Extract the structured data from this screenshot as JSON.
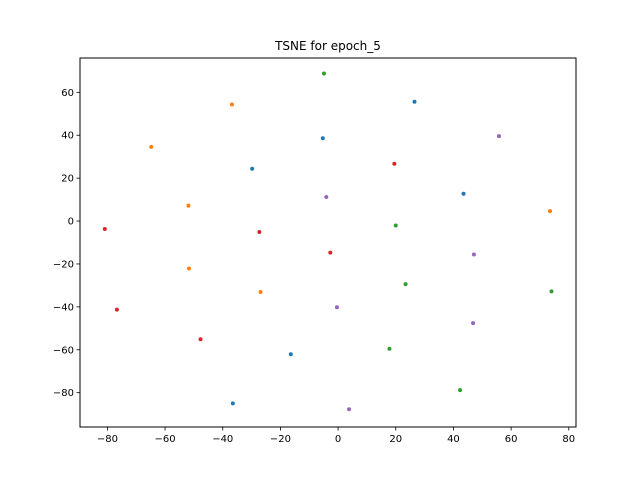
{
  "chart_data": {
    "type": "scatter",
    "title": "TSNE for epoch_5",
    "xlabel": "",
    "ylabel": "",
    "xlim": [
      -89.5,
      82.5
    ],
    "ylim": [
      -96,
      76
    ],
    "x_ticks": [
      -80,
      -60,
      -40,
      -20,
      0,
      20,
      40,
      60,
      80
    ],
    "x_tick_labels": [
      "−80",
      "−60",
      "−40",
      "−20",
      "0",
      "20",
      "40",
      "60",
      "80"
    ],
    "y_ticks": [
      60,
      40,
      20,
      0,
      -20,
      -40,
      -60,
      -80
    ],
    "y_tick_labels": [
      "60",
      "40",
      "20",
      "0",
      "−20",
      "−40",
      "−60",
      "−80"
    ],
    "grid": false,
    "legend": "none",
    "series": [
      {
        "color": "#1f77b4",
        "points": [
          [
            26.5,
            55.6
          ],
          [
            -5.3,
            38.6
          ],
          [
            -29.8,
            24.4
          ],
          [
            43.5,
            12.7
          ],
          [
            -16.4,
            -62.1
          ],
          [
            -36.5,
            -85.0
          ]
        ]
      },
      {
        "color": "#ff7f0e",
        "points": [
          [
            -36.8,
            54.3
          ],
          [
            -64.8,
            34.6
          ],
          [
            -51.9,
            7.2
          ],
          [
            73.5,
            4.6
          ],
          [
            -51.7,
            -22.1
          ],
          [
            -26.9,
            -33.1
          ]
        ]
      },
      {
        "color": "#2ca02c",
        "points": [
          [
            -4.9,
            68.8
          ],
          [
            20.0,
            -2.1
          ],
          [
            23.4,
            -29.4
          ],
          [
            74.0,
            -32.8
          ],
          [
            17.8,
            -59.5
          ],
          [
            42.3,
            -78.8
          ]
        ]
      },
      {
        "color": "#d62728",
        "points": [
          [
            19.5,
            26.7
          ],
          [
            -80.9,
            -3.7
          ],
          [
            -27.3,
            -5.1
          ],
          [
            -2.7,
            -14.7
          ],
          [
            -76.7,
            -41.3
          ],
          [
            -47.7,
            -55.1
          ]
        ]
      },
      {
        "color": "#9467bd",
        "points": [
          [
            55.8,
            39.6
          ],
          [
            -4.1,
            11.2
          ],
          [
            47.1,
            -15.6
          ],
          [
            -0.4,
            -40.2
          ],
          [
            46.8,
            -47.6
          ],
          [
            3.8,
            -87.7
          ]
        ]
      }
    ]
  }
}
